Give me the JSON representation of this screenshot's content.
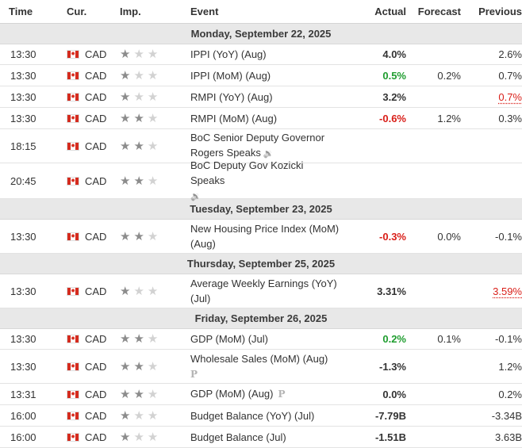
{
  "header": {
    "time": "Time",
    "currency": "Cur.",
    "importance": "Imp.",
    "event": "Event",
    "actual": "Actual",
    "forecast": "Forecast",
    "previous": "Previous"
  },
  "colors": {
    "positive": "#1f9d2f",
    "negative": "#d91e18",
    "day_header_bg": "#e8e8e8"
  },
  "days": [
    {
      "label": "Monday, September 22, 2025",
      "events": [
        {
          "time": "13:30",
          "currency": "CAD",
          "importance": 1,
          "event": "IPPI (YoY) (Aug)",
          "actual": "4.0%",
          "actual_color": "neutral",
          "forecast": "",
          "previous": "2.6%",
          "previous_revised": false
        },
        {
          "time": "13:30",
          "currency": "CAD",
          "importance": 1,
          "event": "IPPI (MoM) (Aug)",
          "actual": "0.5%",
          "actual_color": "positive",
          "forecast": "0.2%",
          "previous": "0.7%",
          "previous_revised": false
        },
        {
          "time": "13:30",
          "currency": "CAD",
          "importance": 1,
          "event": "RMPI (YoY) (Aug)",
          "actual": "3.2%",
          "actual_color": "neutral",
          "forecast": "",
          "previous": "0.7%",
          "previous_revised": true
        },
        {
          "time": "13:30",
          "currency": "CAD",
          "importance": 2,
          "event": "RMPI (MoM) (Aug)",
          "actual": "-0.6%",
          "actual_color": "negative",
          "forecast": "1.2%",
          "previous": "0.3%",
          "previous_revised": false
        },
        {
          "time": "18:15",
          "currency": "CAD",
          "importance": 2,
          "event": "BoC Senior Deputy Governor Rogers Speaks",
          "speech": true,
          "actual": "",
          "forecast": "",
          "previous": ""
        },
        {
          "time": "20:45",
          "currency": "CAD",
          "importance": 2,
          "event": "BoC Deputy Gov Kozicki Speaks",
          "speech": true,
          "speech_newline": true,
          "actual": "",
          "forecast": "",
          "previous": ""
        }
      ]
    },
    {
      "label": "Tuesday, September 23, 2025",
      "events": [
        {
          "time": "13:30",
          "currency": "CAD",
          "importance": 2,
          "event": "New Housing Price Index (MoM) (Aug)",
          "actual": "-0.3%",
          "actual_color": "negative",
          "forecast": "0.0%",
          "previous": "-0.1%",
          "previous_revised": false
        }
      ]
    },
    {
      "label": "Thursday, September 25, 2025",
      "events": [
        {
          "time": "13:30",
          "currency": "CAD",
          "importance": 1,
          "event": "Average Weekly Earnings (YoY) (Jul)",
          "actual": "3.31%",
          "actual_color": "neutral",
          "forecast": "",
          "previous": "3.59%",
          "previous_revised": true
        }
      ]
    },
    {
      "label": "Friday, September 26, 2025",
      "events": [
        {
          "time": "13:30",
          "currency": "CAD",
          "importance": 2,
          "event": "GDP (MoM) (Jul)",
          "actual": "0.2%",
          "actual_color": "positive",
          "forecast": "0.1%",
          "previous": "-0.1%",
          "previous_revised": false
        },
        {
          "time": "13:30",
          "currency": "CAD",
          "importance": 2,
          "event": "Wholesale Sales (MoM) (Aug)",
          "preliminary": true,
          "preliminary_newline": true,
          "actual": "-1.3%",
          "actual_color": "neutral",
          "forecast": "",
          "previous": "1.2%",
          "previous_revised": false
        },
        {
          "time": "13:31",
          "currency": "CAD",
          "importance": 2,
          "event": "GDP (MoM) (Aug)",
          "preliminary": true,
          "actual": "0.0%",
          "actual_color": "neutral",
          "forecast": "",
          "previous": "0.2%",
          "previous_revised": false
        },
        {
          "time": "16:00",
          "currency": "CAD",
          "importance": 1,
          "event": "Budget Balance (YoY) (Jul)",
          "actual": "-7.79B",
          "actual_color": "neutral",
          "forecast": "",
          "previous": "-3.34B",
          "previous_revised": false
        },
        {
          "time": "16:00",
          "currency": "CAD",
          "importance": 1,
          "event": "Budget Balance (Jul)",
          "actual": "-1.51B",
          "actual_color": "neutral",
          "forecast": "",
          "previous": "3.63B",
          "previous_revised": false
        }
      ]
    }
  ],
  "icons": {
    "star": "star-icon",
    "flag": "canada-flag-icon",
    "speech": "speaker-icon",
    "preliminary": "preliminary-p-icon"
  },
  "preliminary_glyph": "P"
}
